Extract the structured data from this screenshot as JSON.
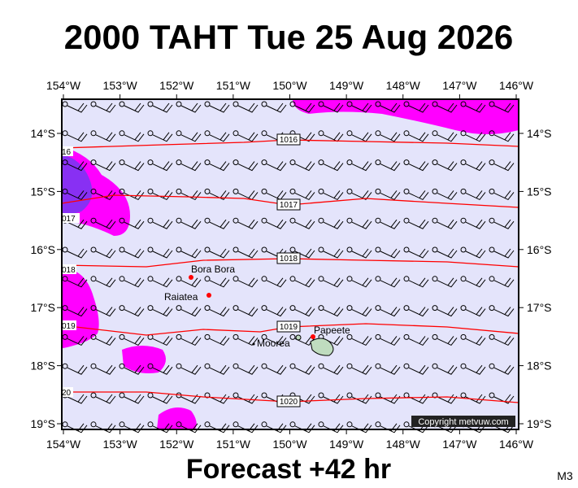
{
  "title": "2000 TAHT Tue 25 Aug 2026",
  "map": {
    "lon_labels": [
      "154°W",
      "153°W",
      "152°W",
      "151°W",
      "150°W",
      "149°W",
      "148°W",
      "147°W",
      "146°W"
    ],
    "lat_labels": [
      "14°S",
      "15°S",
      "16°S",
      "17°S",
      "18°S",
      "19°S"
    ],
    "isobar_labels": [
      "1016",
      "1017",
      "1018",
      "1019",
      "1020"
    ],
    "edge_labels": [
      "16",
      "017",
      "018",
      "019",
      "20"
    ],
    "places": [
      "Bora Bora",
      "Raiatea",
      "Moorea",
      "Papeete"
    ],
    "copyright": "Copyright metvuw.com"
  },
  "footer": "Forecast +42 hr",
  "code": "M3"
}
